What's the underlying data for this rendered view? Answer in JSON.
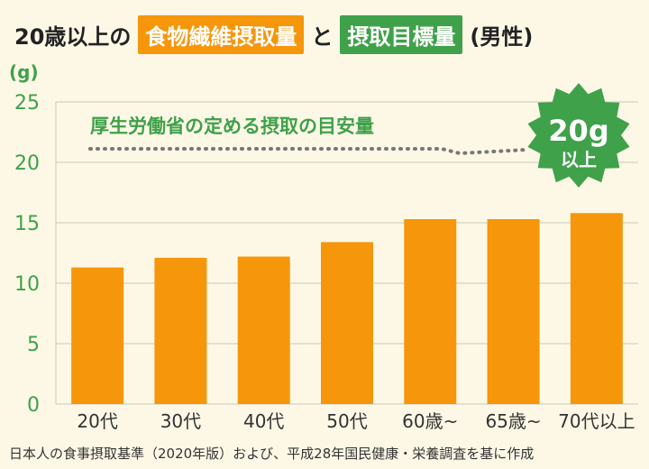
{
  "header": {
    "part1": "20歳以上の",
    "highlight1": "食物繊維摂取量",
    "part2": "と",
    "highlight2": "摂取目標量",
    "part3": "(男性)"
  },
  "goal": {
    "label": "厚生労働省の定める摂取の目安量",
    "badge_value": "20g",
    "badge_suffix": "以上"
  },
  "source": "日本人の食事摂取基準（2020年版）および、平成28年国民健康・栄養調査を基に作成",
  "colors": {
    "bar": "#f5960b",
    "accent_green": "#3fa14a",
    "grid": "#c9c9c0",
    "background": "#fdf8e6"
  },
  "chart_data": {
    "type": "bar",
    "categories": [
      "20代",
      "30代",
      "40代",
      "50代",
      "60歳~",
      "65歳~",
      "70代以上"
    ],
    "values": [
      11.3,
      12.1,
      12.2,
      13.4,
      15.3,
      15.3,
      15.8
    ],
    "ylabel": "(g)",
    "ylim": [
      0,
      25
    ],
    "yticks": [
      0,
      5,
      10,
      15,
      20,
      25
    ],
    "grid": true,
    "reference_line": 20
  }
}
